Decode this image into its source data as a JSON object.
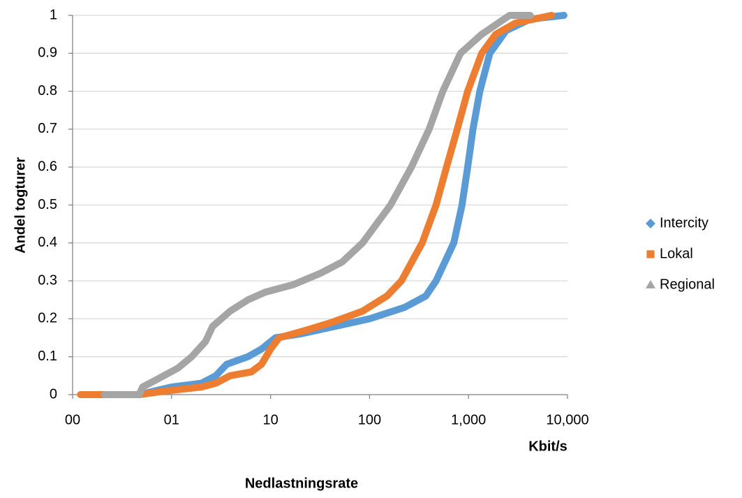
{
  "chart_data": {
    "type": "line",
    "log_x": true,
    "grid": true,
    "legend": "right",
    "ylabel": "Andel togturer",
    "xlabel": "Kbit/s",
    "caption": "Nedlastningsrate",
    "xlim": [
      0.1,
      10000
    ],
    "ylim": [
      0,
      1
    ],
    "xticks": [
      {
        "value": 0.1,
        "label": "00"
      },
      {
        "value": 1,
        "label": "01"
      },
      10,
      100,
      {
        "value": 1000,
        "label": "1,000"
      },
      {
        "value": 10000,
        "label": "10,000"
      }
    ],
    "yticks": [
      0,
      0.1,
      0.2,
      0.3,
      0.4,
      0.5,
      0.6,
      0.7,
      0.8,
      0.9,
      1
    ],
    "series": [
      {
        "name": "Intercity",
        "color": "#5b9bd5",
        "marker": "diamond",
        "x": [
          0.15,
          0.47,
          1,
          2,
          2.8,
          3.6,
          5.9,
          8.1,
          11.2,
          20,
          45,
          100,
          226,
          370,
          470,
          710,
          860,
          980,
          1110,
          1300,
          1640,
          2400,
          4200,
          9200
        ],
        "values": [
          0,
          0,
          0.02,
          0.03,
          0.05,
          0.08,
          0.1,
          0.12,
          0.15,
          0.16,
          0.18,
          0.2,
          0.23,
          0.26,
          0.3,
          0.4,
          0.5,
          0.6,
          0.7,
          0.8,
          0.9,
          0.96,
          0.99,
          1
        ]
      },
      {
        "name": "Lokal",
        "color": "#ed7d31",
        "marker": "square",
        "x": [
          0.12,
          0.47,
          0.9,
          2,
          2.8,
          3.9,
          6.4,
          8.1,
          10,
          12.2,
          23,
          41,
          85,
          150,
          210,
          340,
          470,
          600,
          770,
          980,
          1360,
          1880,
          3000,
          6900
        ],
        "values": [
          0,
          0,
          0.01,
          0.02,
          0.03,
          0.05,
          0.06,
          0.08,
          0.12,
          0.15,
          0.17,
          0.19,
          0.22,
          0.26,
          0.3,
          0.4,
          0.5,
          0.6,
          0.7,
          0.8,
          0.9,
          0.95,
          0.98,
          1
        ]
      },
      {
        "name": "Regional",
        "color": "#a5a5a5",
        "marker": "triangle",
        "x": [
          0.21,
          0.47,
          0.51,
          0.71,
          1.16,
          1.6,
          2.2,
          2.6,
          3.9,
          5.9,
          8.8,
          17,
          32,
          53,
          85,
          163,
          265,
          400,
          550,
          830,
          1360,
          2600,
          4200
        ],
        "values": [
          0,
          0,
          0.02,
          0.04,
          0.07,
          0.1,
          0.14,
          0.18,
          0.22,
          0.25,
          0.27,
          0.29,
          0.32,
          0.35,
          0.4,
          0.5,
          0.6,
          0.7,
          0.8,
          0.9,
          0.95,
          1,
          1
        ]
      }
    ]
  }
}
